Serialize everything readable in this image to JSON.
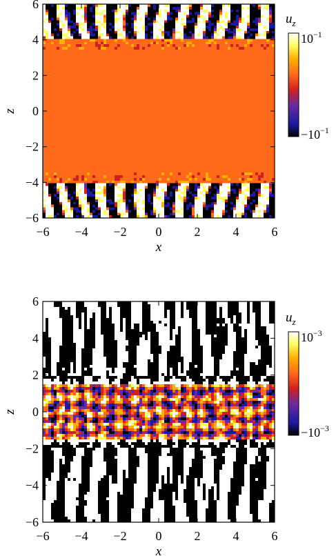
{
  "chart_data": [
    {
      "type": "heatmap",
      "xlabel": "x",
      "ylabel": "z",
      "xlim": [
        -6,
        6
      ],
      "ylim": [
        -6,
        6
      ],
      "xticks": [
        "−6",
        "−4",
        "−2",
        "0",
        "2",
        "4",
        "6"
      ],
      "yticks": [
        "−6",
        "−4",
        "−2",
        "0",
        "2",
        "4",
        "6"
      ],
      "colorbar": {
        "label": "u_z",
        "max": "10^-1",
        "min": "−10^-1",
        "max_value": 0.1,
        "min_value": -0.1
      },
      "pattern": "Vertical fingers for |z| > 4, nearly uniform (near zero) interior for |z| < 4",
      "colormap": [
        "#000000",
        "#1a1aa0",
        "#6a2aa0",
        "#d02020",
        "#ff6a1a",
        "#ffb000",
        "#ffff60",
        "#ffffff"
      ]
    },
    {
      "type": "heatmap",
      "xlabel": "x",
      "ylabel": "z",
      "xlim": [
        -6,
        6
      ],
      "ylim": [
        -6,
        6
      ],
      "xticks": [
        "−6",
        "−4",
        "−2",
        "0",
        "2",
        "4",
        "6"
      ],
      "yticks": [
        "−6",
        "−4",
        "−2",
        "0",
        "2",
        "4",
        "6"
      ],
      "colorbar": {
        "label": "u_z",
        "max": "10^-3",
        "min": "−10^-3",
        "max_value": 0.001,
        "min_value": -0.001
      },
      "pattern": "Saturated vertical fingers for |z| > 2, diagonal cellular pattern in core |z| < 2",
      "colormap": [
        "#000000",
        "#1a1aa0",
        "#6a2aa0",
        "#d02020",
        "#ff6a1a",
        "#ffb000",
        "#ffff60",
        "#ffffff"
      ]
    }
  ]
}
